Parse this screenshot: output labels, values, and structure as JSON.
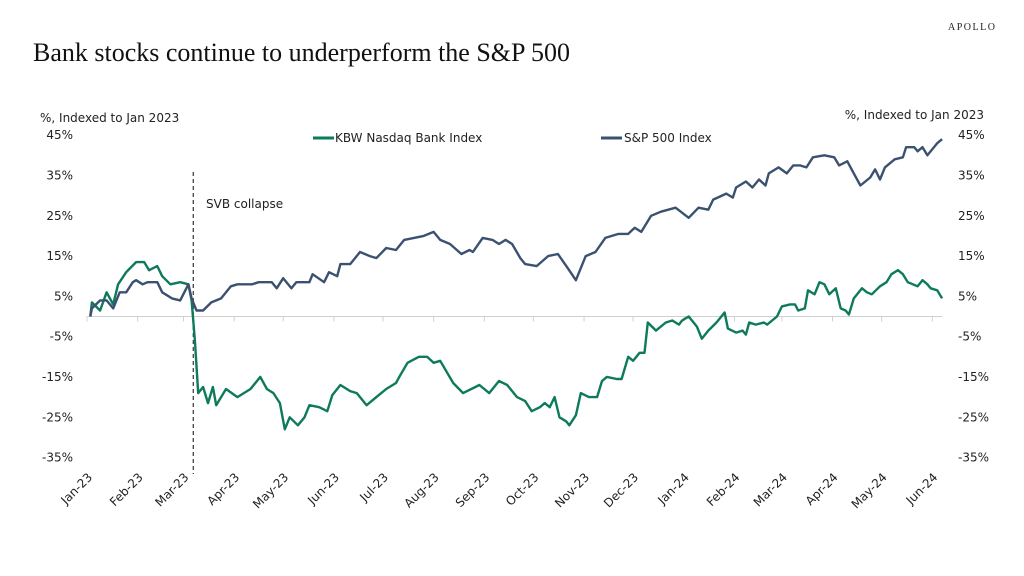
{
  "logo": "APOLLO",
  "chart_data": {
    "type": "line",
    "title": "Bank stocks continue to underperform the S&P 500",
    "ylabel_left": "%, Indexed to Jan 2023",
    "ylabel_right": "%, Indexed to Jan 2023",
    "ylim": [
      -35,
      45
    ],
    "yticks": [
      45,
      35,
      25,
      15,
      5,
      -5,
      -15,
      -25,
      -35
    ],
    "ytick_labels": [
      "45%",
      "35%",
      "25%",
      "15%",
      "5%",
      "-5%",
      "-15%",
      "-25%",
      "-35%"
    ],
    "xlim": [
      "2023-01-01",
      "2024-06-07"
    ],
    "xticks": [
      "2023-01-01",
      "2023-02-01",
      "2023-03-01",
      "2023-04-01",
      "2023-05-01",
      "2023-06-01",
      "2023-07-01",
      "2023-08-01",
      "2023-09-01",
      "2023-10-01",
      "2023-11-01",
      "2023-12-01",
      "2024-01-01",
      "2024-02-01",
      "2024-03-01",
      "2024-04-01",
      "2024-05-01",
      "2024-06-01"
    ],
    "xtick_labels": [
      "Jan-23",
      "Feb-23",
      "Mar-23",
      "Apr-23",
      "May-23",
      "Jun-23",
      "Jul-23",
      "Aug-23",
      "Sep-23",
      "Oct-23",
      "Nov-23",
      "Dec-23",
      "Jan-24",
      "Feb-24",
      "Mar-24",
      "Apr-24",
      "May-24",
      "Jun-24"
    ],
    "grid": false,
    "legend_position": "top-center",
    "annotation": {
      "label": "SVB collapse",
      "date": "2023-03-07",
      "style": "dashed-vertical-line"
    },
    "series": [
      {
        "name": "KBW Nasdaq Bank Index",
        "color": "#0e7a5c",
        "points": [
          [
            "2023-01-03",
            0
          ],
          [
            "2023-01-04",
            3.5
          ],
          [
            "2023-01-09",
            1.5
          ],
          [
            "2023-01-13",
            6
          ],
          [
            "2023-01-17",
            3
          ],
          [
            "2023-01-20",
            8
          ],
          [
            "2023-01-25",
            11
          ],
          [
            "2023-01-31",
            13.5
          ],
          [
            "2023-02-05",
            13.5
          ],
          [
            "2023-02-08",
            11.5
          ],
          [
            "2023-02-13",
            12.5
          ],
          [
            "2023-02-16",
            10
          ],
          [
            "2023-02-21",
            8
          ],
          [
            "2023-02-27",
            8.5
          ],
          [
            "2023-03-04",
            8
          ],
          [
            "2023-03-06",
            4
          ],
          [
            "2023-03-08",
            -6
          ],
          [
            "2023-03-10",
            -19
          ],
          [
            "2023-03-13",
            -17.5
          ],
          [
            "2023-03-16",
            -21.5
          ],
          [
            "2023-03-19",
            -17.5
          ],
          [
            "2023-03-21",
            -22
          ],
          [
            "2023-03-27",
            -18
          ],
          [
            "2023-04-03",
            -20
          ],
          [
            "2023-04-11",
            -18
          ],
          [
            "2023-04-17",
            -15
          ],
          [
            "2023-04-21",
            -18
          ],
          [
            "2023-04-25",
            -19
          ],
          [
            "2023-04-29",
            -21.5
          ],
          [
            "2023-05-02",
            -28
          ],
          [
            "2023-05-05",
            -25
          ],
          [
            "2023-05-10",
            -27
          ],
          [
            "2023-05-14",
            -25
          ],
          [
            "2023-05-17",
            -22
          ],
          [
            "2023-05-23",
            -22.5
          ],
          [
            "2023-05-28",
            -23.5
          ],
          [
            "2023-05-31",
            -19.5
          ],
          [
            "2023-06-05",
            -17
          ],
          [
            "2023-06-11",
            -18.5
          ],
          [
            "2023-06-15",
            -19
          ],
          [
            "2023-06-21",
            -22
          ],
          [
            "2023-06-27",
            -20
          ],
          [
            "2023-07-03",
            -18
          ],
          [
            "2023-07-09",
            -16.5
          ],
          [
            "2023-07-11",
            -15
          ],
          [
            "2023-07-16",
            -11.5
          ],
          [
            "2023-07-23",
            -10
          ],
          [
            "2023-07-28",
            -10
          ],
          [
            "2023-08-01",
            -11.5
          ],
          [
            "2023-08-05",
            -11
          ],
          [
            "2023-08-13",
            -16.5
          ],
          [
            "2023-08-19",
            -19
          ],
          [
            "2023-08-29",
            -17
          ],
          [
            "2023-09-04",
            -19
          ],
          [
            "2023-09-10",
            -16
          ],
          [
            "2023-09-15",
            -17
          ],
          [
            "2023-09-21",
            -20
          ],
          [
            "2023-09-26",
            -21
          ],
          [
            "2023-09-30",
            -23.5
          ],
          [
            "2023-10-05",
            -22.5
          ],
          [
            "2023-10-08",
            -21.5
          ],
          [
            "2023-10-11",
            -22.5
          ],
          [
            "2023-10-14",
            -20
          ],
          [
            "2023-10-17",
            -25
          ],
          [
            "2023-10-21",
            -26
          ],
          [
            "2023-10-23",
            -27
          ],
          [
            "2023-10-27",
            -24.5
          ],
          [
            "2023-10-30",
            -19
          ],
          [
            "2023-11-04",
            -20
          ],
          [
            "2023-11-09",
            -20
          ],
          [
            "2023-11-12",
            -16
          ],
          [
            "2023-11-15",
            -15
          ],
          [
            "2023-11-21",
            -15.5
          ],
          [
            "2023-11-24",
            -15.5
          ],
          [
            "2023-11-28",
            -10
          ],
          [
            "2023-12-01",
            -11
          ],
          [
            "2023-12-05",
            -9
          ],
          [
            "2023-12-08",
            -9
          ],
          [
            "2023-12-10",
            -1.5
          ],
          [
            "2023-12-15",
            -3.5
          ],
          [
            "2023-12-21",
            -1.5
          ],
          [
            "2023-12-25",
            -1
          ],
          [
            "2023-12-29",
            -2
          ],
          [
            "2023-12-31",
            -1
          ],
          [
            "2024-01-04",
            0
          ],
          [
            "2024-01-09",
            -2.5
          ],
          [
            "2024-01-12",
            -5.5
          ],
          [
            "2024-01-16",
            -3.5
          ],
          [
            "2024-01-21",
            -1.5
          ],
          [
            "2024-01-26",
            1
          ],
          [
            "2024-01-28",
            -3
          ],
          [
            "2024-02-02",
            -4
          ],
          [
            "2024-02-06",
            -3.5
          ],
          [
            "2024-02-08",
            -4.5
          ],
          [
            "2024-02-10",
            -1.5
          ],
          [
            "2024-02-14",
            -2
          ],
          [
            "2024-02-19",
            -1.5
          ],
          [
            "2024-02-21",
            -2
          ],
          [
            "2024-02-27",
            0
          ],
          [
            "2024-03-01",
            2.5
          ],
          [
            "2024-03-06",
            3
          ],
          [
            "2024-03-09",
            3
          ],
          [
            "2024-03-11",
            1.5
          ],
          [
            "2024-03-15",
            2
          ],
          [
            "2024-03-17",
            6.5
          ],
          [
            "2024-03-21",
            5.5
          ],
          [
            "2024-03-24",
            8.5
          ],
          [
            "2024-03-27",
            8
          ],
          [
            "2024-03-30",
            5.5
          ],
          [
            "2024-04-03",
            7
          ],
          [
            "2024-04-06",
            2
          ],
          [
            "2024-04-09",
            1.5
          ],
          [
            "2024-04-11",
            0.5
          ],
          [
            "2024-04-14",
            4.5
          ],
          [
            "2024-04-19",
            7
          ],
          [
            "2024-04-22",
            6
          ],
          [
            "2024-04-25",
            5.5
          ],
          [
            "2024-04-30",
            7.5
          ],
          [
            "2024-05-04",
            8.5
          ],
          [
            "2024-05-07",
            10.5
          ],
          [
            "2024-05-11",
            11.5
          ],
          [
            "2024-05-14",
            10.5
          ],
          [
            "2024-05-17",
            8.5
          ],
          [
            "2024-05-23",
            7.5
          ],
          [
            "2024-05-26",
            9
          ],
          [
            "2024-05-29",
            8
          ],
          [
            "2024-05-31",
            7
          ],
          [
            "2024-06-04",
            6.5
          ],
          [
            "2024-06-07",
            4.5
          ]
        ]
      },
      {
        "name": "S&P 500 Index",
        "color": "#3b5170",
        "points": [
          [
            "2023-01-03",
            0
          ],
          [
            "2023-01-04",
            2
          ],
          [
            "2023-01-09",
            4
          ],
          [
            "2023-01-13",
            4
          ],
          [
            "2023-01-17",
            2
          ],
          [
            "2023-01-21",
            6
          ],
          [
            "2023-01-25",
            6
          ],
          [
            "2023-01-29",
            8.5
          ],
          [
            "2023-01-31",
            9
          ],
          [
            "2023-02-04",
            8
          ],
          [
            "2023-02-07",
            8.5
          ],
          [
            "2023-02-13",
            8.5
          ],
          [
            "2023-02-16",
            6
          ],
          [
            "2023-02-22",
            4.5
          ],
          [
            "2023-02-27",
            4
          ],
          [
            "2023-03-04",
            8
          ],
          [
            "2023-03-06",
            4.5
          ],
          [
            "2023-03-09",
            1.5
          ],
          [
            "2023-03-13",
            1.5
          ],
          [
            "2023-03-18",
            3.5
          ],
          [
            "2023-03-21",
            4
          ],
          [
            "2023-03-24",
            4.5
          ],
          [
            "2023-03-30",
            7.5
          ],
          [
            "2023-04-03",
            8
          ],
          [
            "2023-04-12",
            8
          ],
          [
            "2023-04-16",
            8.5
          ],
          [
            "2023-04-24",
            8.5
          ],
          [
            "2023-04-27",
            7
          ],
          [
            "2023-05-01",
            9.5
          ],
          [
            "2023-05-06",
            7
          ],
          [
            "2023-05-09",
            8.5
          ],
          [
            "2023-05-17",
            8.5
          ],
          [
            "2023-05-19",
            10.5
          ],
          [
            "2023-05-26",
            8.5
          ],
          [
            "2023-05-29",
            11
          ],
          [
            "2023-06-03",
            10
          ],
          [
            "2023-06-05",
            13
          ],
          [
            "2023-06-11",
            13
          ],
          [
            "2023-06-17",
            16
          ],
          [
            "2023-06-23",
            15
          ],
          [
            "2023-06-27",
            14.5
          ],
          [
            "2023-07-03",
            17
          ],
          [
            "2023-07-09",
            16.5
          ],
          [
            "2023-07-14",
            19
          ],
          [
            "2023-07-20",
            19.5
          ],
          [
            "2023-07-26",
            20
          ],
          [
            "2023-08-01",
            21
          ],
          [
            "2023-08-05",
            19
          ],
          [
            "2023-08-11",
            18
          ],
          [
            "2023-08-18",
            15.5
          ],
          [
            "2023-08-23",
            16.5
          ],
          [
            "2023-08-25",
            16
          ],
          [
            "2023-08-31",
            19.5
          ],
          [
            "2023-09-06",
            19
          ],
          [
            "2023-09-10",
            18
          ],
          [
            "2023-09-14",
            19
          ],
          [
            "2023-09-18",
            18
          ],
          [
            "2023-09-23",
            14.5
          ],
          [
            "2023-09-26",
            13
          ],
          [
            "2023-10-03",
            12.5
          ],
          [
            "2023-10-10",
            15
          ],
          [
            "2023-10-16",
            15.5
          ],
          [
            "2023-10-22",
            12
          ],
          [
            "2023-10-27",
            9
          ],
          [
            "2023-11-02",
            15
          ],
          [
            "2023-11-08",
            16
          ],
          [
            "2023-11-14",
            19.5
          ],
          [
            "2023-11-22",
            20.5
          ],
          [
            "2023-11-28",
            20.5
          ],
          [
            "2023-12-02",
            22
          ],
          [
            "2023-12-06",
            21
          ],
          [
            "2023-12-12",
            25
          ],
          [
            "2023-12-18",
            26
          ],
          [
            "2023-12-27",
            27
          ],
          [
            "2024-01-04",
            24.5
          ],
          [
            "2024-01-10",
            27
          ],
          [
            "2024-01-16",
            26.5
          ],
          [
            "2024-01-19",
            29
          ],
          [
            "2024-01-27",
            30.5
          ],
          [
            "2024-01-31",
            29.5
          ],
          [
            "2024-02-02",
            32
          ],
          [
            "2024-02-08",
            33.5
          ],
          [
            "2024-02-12",
            32
          ],
          [
            "2024-02-16",
            34
          ],
          [
            "2024-02-20",
            32.5
          ],
          [
            "2024-02-22",
            35.5
          ],
          [
            "2024-02-28",
            37
          ],
          [
            "2024-03-04",
            35.5
          ],
          [
            "2024-03-08",
            37.5
          ],
          [
            "2024-03-12",
            37.5
          ],
          [
            "2024-03-16",
            37
          ],
          [
            "2024-03-20",
            39.5
          ],
          [
            "2024-03-27",
            40
          ],
          [
            "2024-04-02",
            39.5
          ],
          [
            "2024-04-05",
            37.5
          ],
          [
            "2024-04-10",
            38.5
          ],
          [
            "2024-04-14",
            35.5
          ],
          [
            "2024-04-18",
            32.5
          ],
          [
            "2024-04-24",
            34.5
          ],
          [
            "2024-04-27",
            36.5
          ],
          [
            "2024-04-30",
            34
          ],
          [
            "2024-05-03",
            37
          ],
          [
            "2024-05-09",
            39
          ],
          [
            "2024-05-14",
            39.5
          ],
          [
            "2024-05-16",
            42
          ],
          [
            "2024-05-21",
            42
          ],
          [
            "2024-05-23",
            41
          ],
          [
            "2024-05-26",
            42
          ],
          [
            "2024-05-29",
            40
          ],
          [
            "2024-06-01",
            41.5
          ],
          [
            "2024-06-04",
            43
          ],
          [
            "2024-06-07",
            44
          ]
        ]
      }
    ]
  }
}
